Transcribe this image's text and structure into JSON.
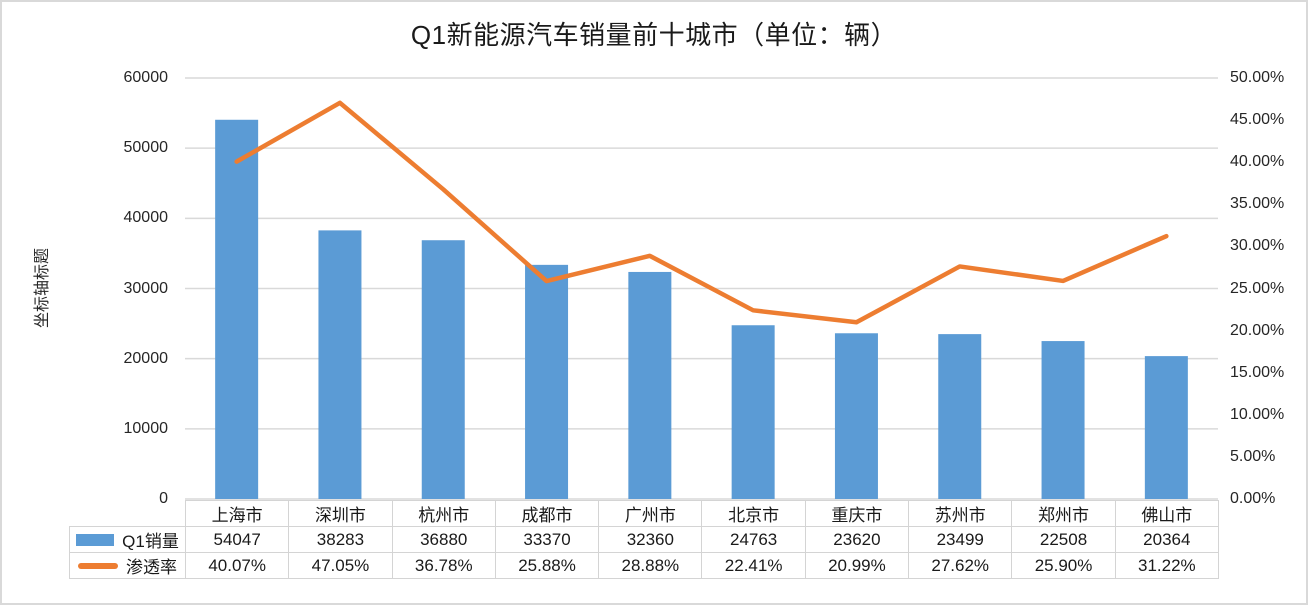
{
  "chart_title": "Q1新能源汽车销量前十城市（单位：辆）",
  "left_axis_title": "坐标轴标题",
  "chart_data": {
    "type": "bar",
    "subtype": "combo-bar-line",
    "title": "Q1新能源汽车销量前十城市（单位：辆）",
    "categories": [
      "上海市",
      "深圳市",
      "杭州市",
      "成都市",
      "广州市",
      "北京市",
      "重庆市",
      "苏州市",
      "郑州市",
      "佛山市"
    ],
    "series": [
      {
        "name": "Q1销量",
        "type": "bar",
        "axis": "left",
        "color": "#5B9BD5",
        "values": [
          54047,
          38283,
          36880,
          33370,
          32360,
          24763,
          23620,
          23499,
          22508,
          20364
        ],
        "display_values": [
          "54047",
          "38283",
          "36880",
          "33370",
          "32360",
          "24763",
          "23620",
          "23499",
          "22508",
          "20364"
        ]
      },
      {
        "name": "渗透率",
        "type": "line",
        "axis": "right",
        "color": "#ED7D31",
        "values": [
          40.07,
          47.05,
          36.78,
          25.88,
          28.88,
          22.41,
          20.99,
          27.62,
          25.9,
          31.22
        ],
        "display_values": [
          "40.07%",
          "47.05%",
          "36.78%",
          "25.88%",
          "28.88%",
          "22.41%",
          "20.99%",
          "27.62%",
          "25.90%",
          "31.22%"
        ]
      }
    ],
    "left_axis": {
      "title": "坐标轴标题",
      "min": 0,
      "max": 60000,
      "tick_labels": [
        "0",
        "10000",
        "20000",
        "30000",
        "40000",
        "50000",
        "60000"
      ]
    },
    "right_axis": {
      "min": 0,
      "max": 50,
      "tick_labels": [
        "0.00%",
        "5.00%",
        "10.00%",
        "15.00%",
        "20.00%",
        "25.00%",
        "30.00%",
        "35.00%",
        "40.00%",
        "45.00%",
        "50.00%"
      ]
    },
    "grid": true,
    "legend_position": "table-left",
    "colors": {
      "bar": "#5B9BD5",
      "line": "#ED7D31",
      "gridline": "#D9D9D9",
      "table_border": "#D4D4D4",
      "text": "#262626"
    }
  }
}
